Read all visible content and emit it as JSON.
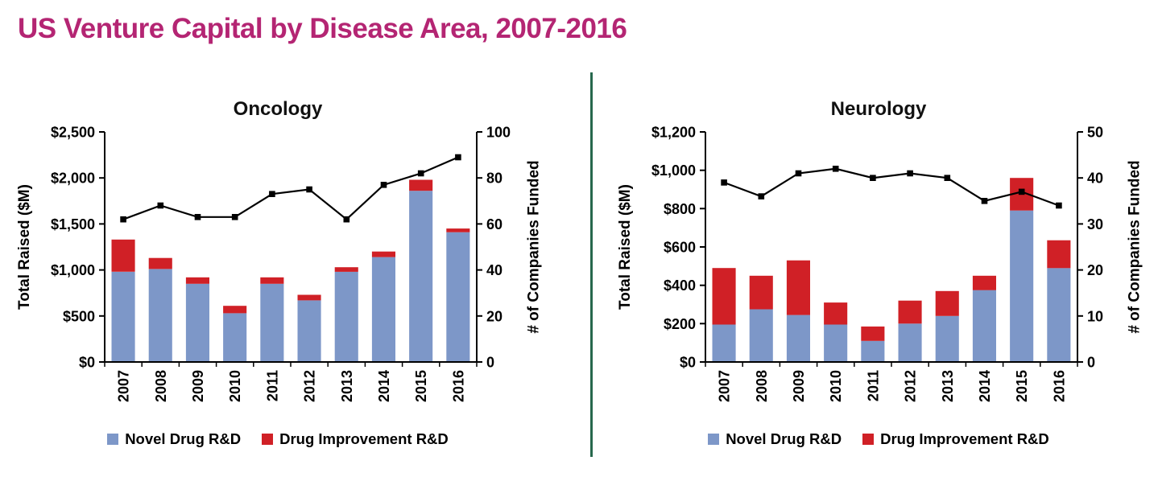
{
  "page_title": "US Venture Capital by Disease Area, 2007-2016",
  "colors": {
    "title_magenta": "#b42573",
    "divider_green": "#27684d",
    "novel_blue": "#7d97c8",
    "improvement_red": "#d02026",
    "line_black": "#000000"
  },
  "chart_data": [
    {
      "type": "bar",
      "stacked": true,
      "title": "Oncology",
      "ylabel": "Total Raised ($M)",
      "y2label": "# of Companies Funded",
      "grid": false,
      "legend_position": "bottom",
      "categories": [
        "2007",
        "2008",
        "2009",
        "2010",
        "2011",
        "2012",
        "2013",
        "2014",
        "2015",
        "2016"
      ],
      "series": [
        {
          "name": "Novel Drug R&D",
          "color": "#7d97c8",
          "values": [
            980,
            1010,
            850,
            530,
            850,
            670,
            980,
            1140,
            1860,
            1410
          ]
        },
        {
          "name": "Drug Improvement R&D",
          "color": "#d02026",
          "values": [
            350,
            120,
            70,
            80,
            70,
            60,
            50,
            60,
            120,
            40
          ]
        }
      ],
      "line_series": {
        "name": "# of Companies Funded",
        "axis": "right",
        "color": "#000000",
        "values": [
          62,
          68,
          63,
          63,
          73,
          75,
          62,
          77,
          82,
          89
        ]
      },
      "ylim": [
        0,
        2500
      ],
      "y2lim": [
        0,
        100
      ],
      "ytick_values": [
        0,
        500,
        1000,
        1500,
        2000,
        2500
      ],
      "ytick_labels": [
        "$0",
        "$500",
        "$1,000",
        "$1,500",
        "$2,000",
        "$2,500"
      ],
      "y2tick_values": [
        0,
        20,
        40,
        60,
        80,
        100
      ],
      "y2tick_labels": [
        "0",
        "20",
        "40",
        "60",
        "80",
        "100"
      ]
    },
    {
      "type": "bar",
      "stacked": true,
      "title": "Neurology",
      "ylabel": "Total Raised ($M)",
      "y2label": "# of Companies Funded",
      "grid": false,
      "legend_position": "bottom",
      "categories": [
        "2007",
        "2008",
        "2009",
        "2010",
        "2011",
        "2012",
        "2013",
        "2014",
        "2015",
        "2016"
      ],
      "series": [
        {
          "name": "Novel Drug R&D",
          "color": "#7d97c8",
          "values": [
            195,
            275,
            245,
            195,
            110,
            200,
            240,
            375,
            790,
            490
          ]
        },
        {
          "name": "Drug Improvement R&D",
          "color": "#d02026",
          "values": [
            295,
            175,
            285,
            115,
            75,
            120,
            130,
            75,
            170,
            145
          ]
        }
      ],
      "line_series": {
        "name": "# of Companies Funded",
        "axis": "right",
        "color": "#000000",
        "values": [
          39,
          36,
          41,
          42,
          40,
          41,
          40,
          35,
          37,
          34
        ]
      },
      "ylim": [
        0,
        1200
      ],
      "y2lim": [
        0,
        50
      ],
      "ytick_values": [
        0,
        200,
        400,
        600,
        800,
        1000,
        1200
      ],
      "ytick_labels": [
        "$0",
        "$200",
        "$400",
        "$600",
        "$800",
        "$1,000",
        "$1,200"
      ],
      "y2tick_values": [
        0,
        10,
        20,
        30,
        40,
        50
      ],
      "y2tick_labels": [
        "0",
        "10",
        "20",
        "30",
        "40",
        "50"
      ]
    }
  ]
}
